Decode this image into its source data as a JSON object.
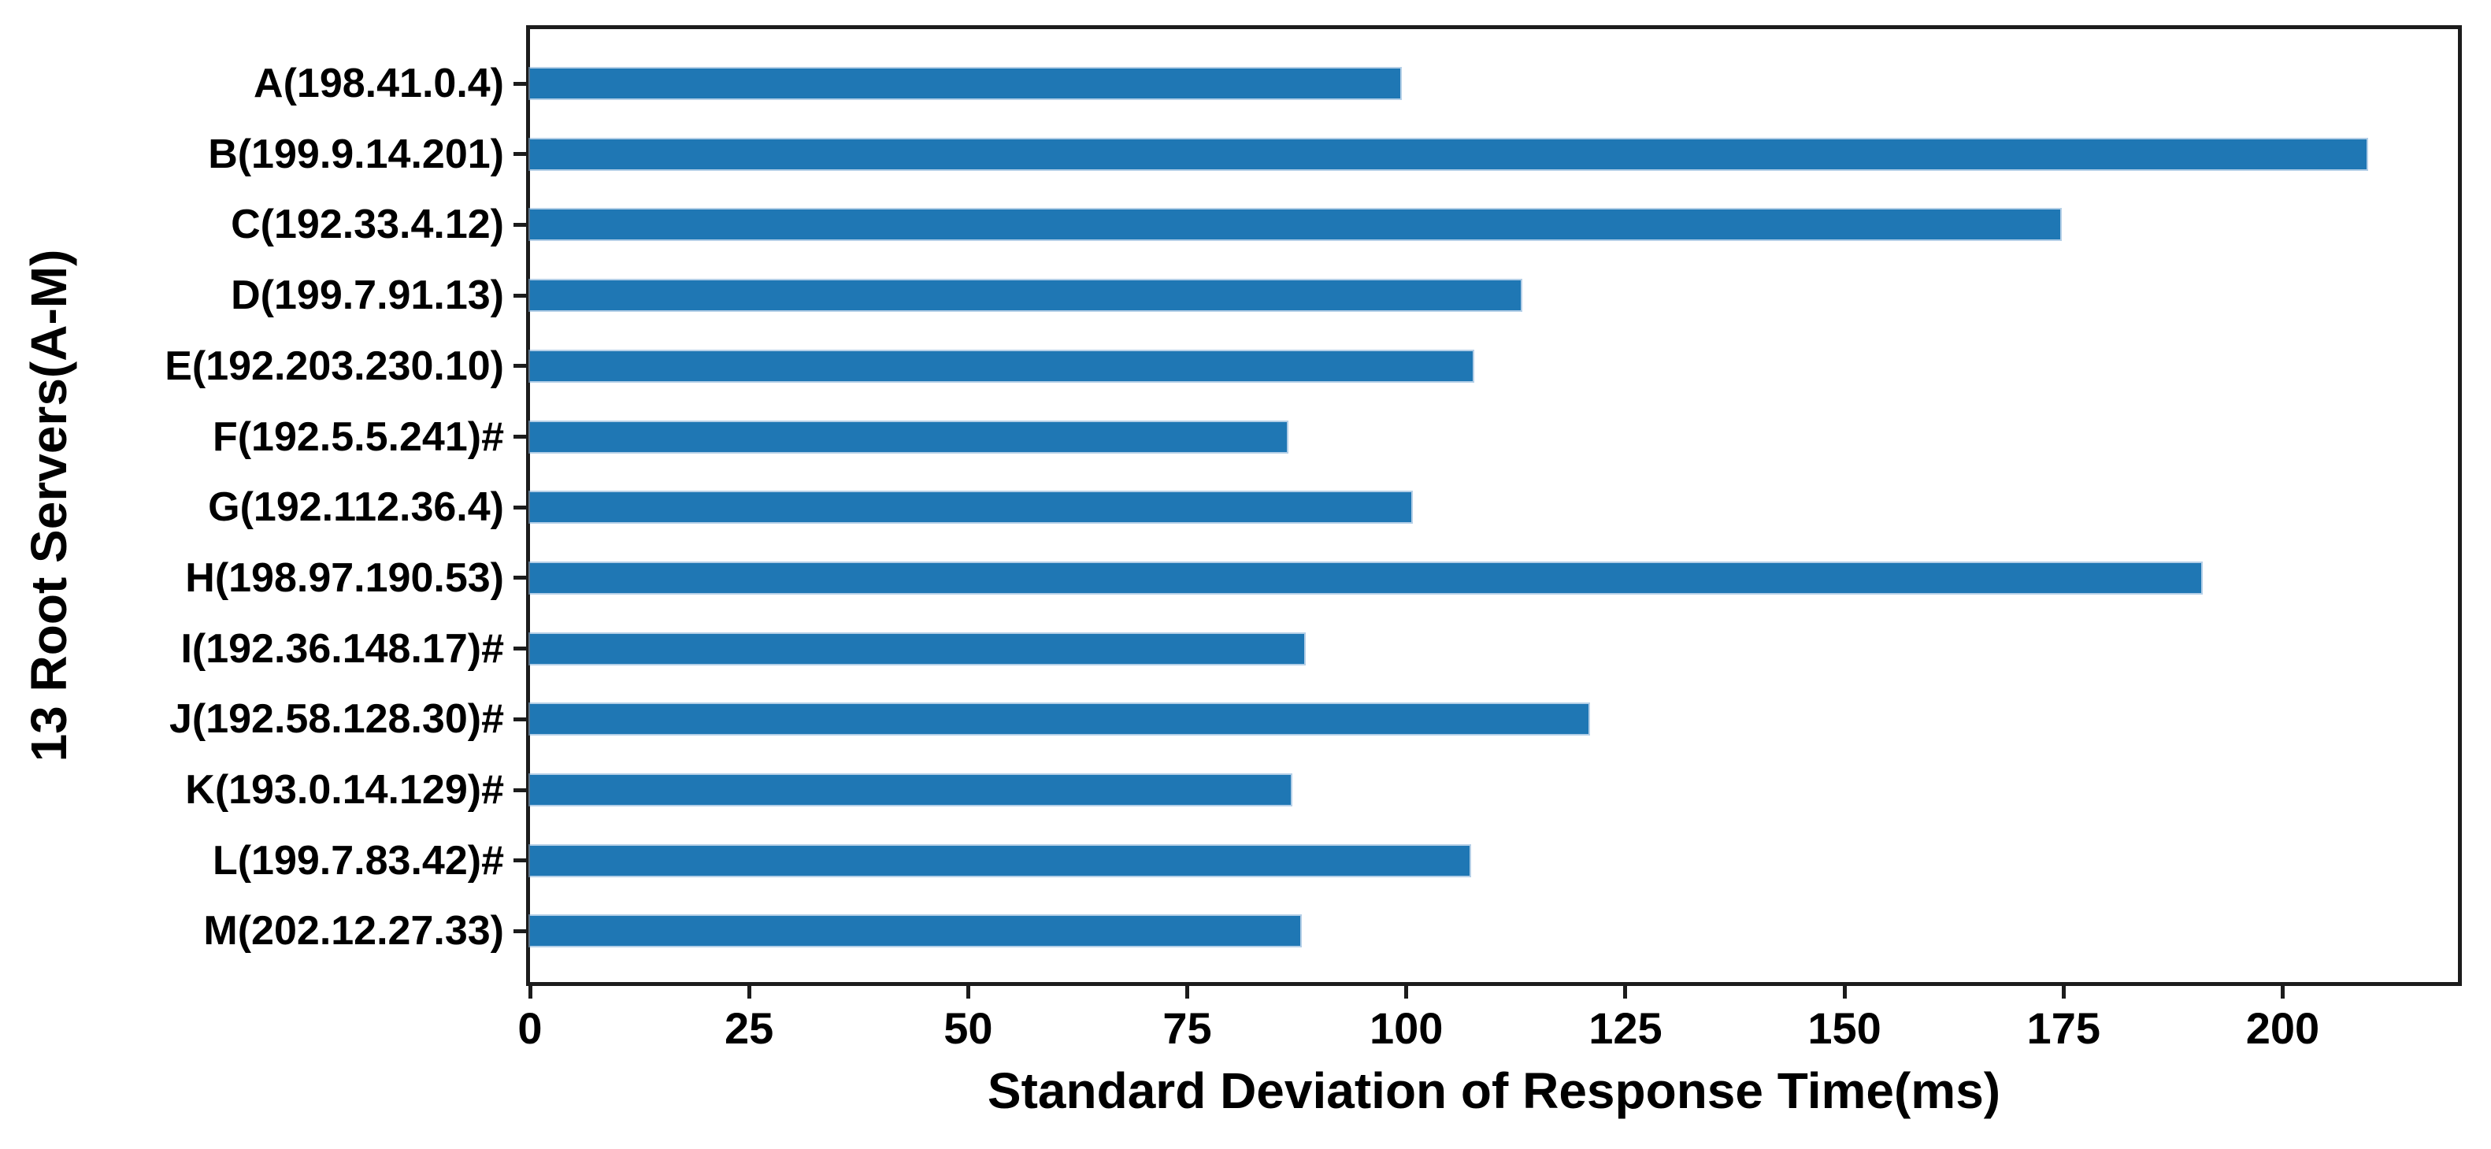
{
  "chart_data": {
    "type": "bar",
    "orientation": "horizontal",
    "title": "",
    "xlabel": "Standard Deviation of Response Time(ms)",
    "ylabel": "13 Root Servers(A-M)",
    "categories": [
      "A(198.41.0.4)",
      "B(199.9.14.201)",
      "C(192.33.4.12)",
      "D(199.7.91.13)",
      "E(192.203.230.10)",
      "F(192.5.5.241)#",
      "G(192.112.36.4)",
      "H(198.97.190.53)",
      "I(192.36.148.17)#",
      "J(192.58.128.30)#",
      "K(193.0.14.129)#",
      "L(199.7.83.42)#",
      "M(202.12.27.33)"
    ],
    "values": [
      99.3,
      209.6,
      174.6,
      113.1,
      107.6,
      86.4,
      100.6,
      190.7,
      88.3,
      120.8,
      86.8,
      107.2,
      87.9
    ],
    "xticks": [
      0,
      25,
      50,
      75,
      100,
      125,
      150,
      175,
      200
    ],
    "xlim": [
      0,
      220
    ],
    "grid": false,
    "legend_position": "none",
    "bar_color": "#1f77b4",
    "bar_edge_color": "#82afd7",
    "axis_color": "#1c1c1c",
    "text_color": "#000000",
    "background_color": "#ffffff"
  }
}
